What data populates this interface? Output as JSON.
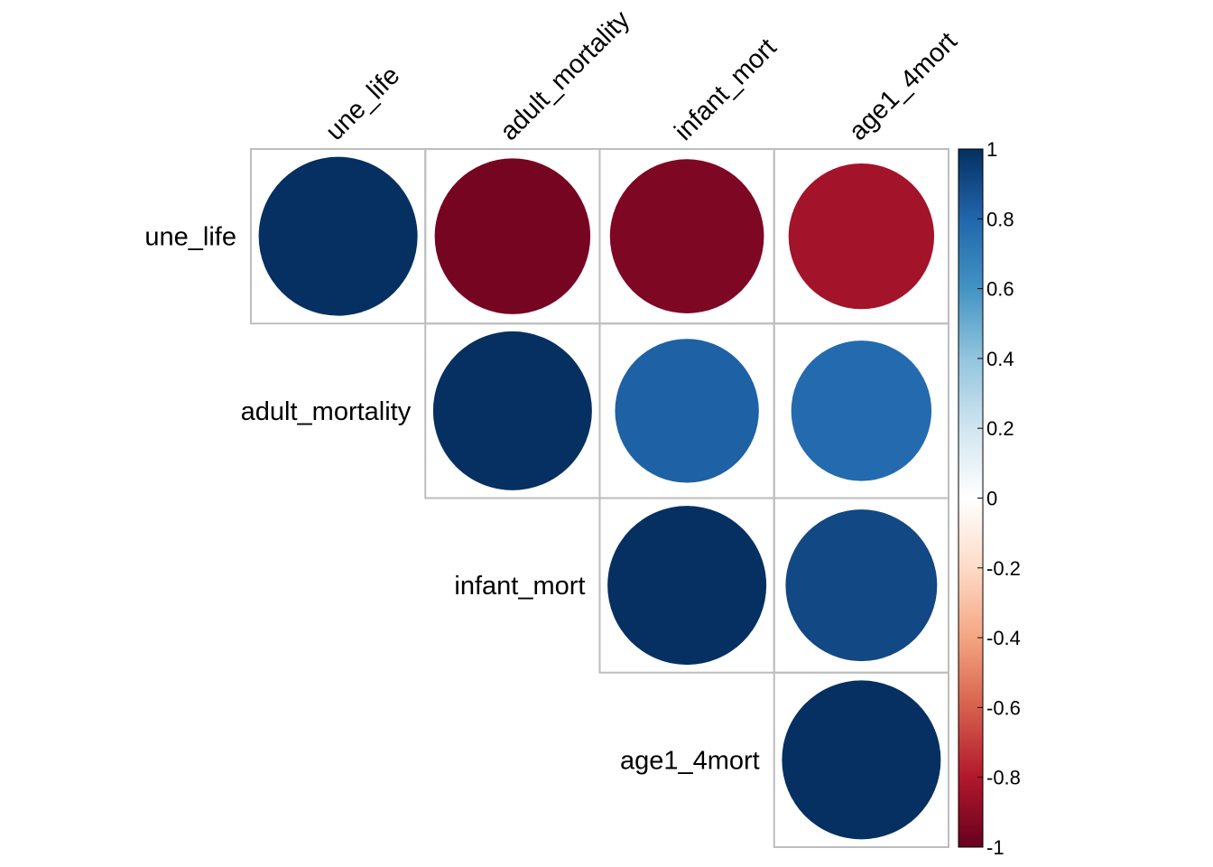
{
  "chart_data": {
    "type": "heatmap",
    "variables": [
      "une_life",
      "adult_mortality",
      "infant_mort",
      "age1_4mort"
    ],
    "layout": "upper-triangle",
    "cells": [
      {
        "row": "une_life",
        "col": "une_life",
        "value": 1.0
      },
      {
        "row": "une_life",
        "col": "adult_mortality",
        "value": -0.96
      },
      {
        "row": "une_life",
        "col": "infant_mort",
        "value": -0.94
      },
      {
        "row": "une_life",
        "col": "age1_4mort",
        "value": -0.84
      },
      {
        "row": "adult_mortality",
        "col": "adult_mortality",
        "value": 1.0
      },
      {
        "row": "adult_mortality",
        "col": "infant_mort",
        "value": 0.82
      },
      {
        "row": "adult_mortality",
        "col": "age1_4mort",
        "value": 0.78
      },
      {
        "row": "infant_mort",
        "col": "infant_mort",
        "value": 1.0
      },
      {
        "row": "infant_mort",
        "col": "age1_4mort",
        "value": 0.91
      },
      {
        "row": "age1_4mort",
        "col": "age1_4mort",
        "value": 1.0
      }
    ],
    "colorbar": {
      "range": [
        -1,
        1
      ],
      "ticks": [
        "1",
        "0.8",
        "0.6",
        "0.4",
        "0.2",
        "0",
        "-0.2",
        "-0.4",
        "-0.6",
        "-0.8",
        "-1"
      ],
      "palette": [
        "#67001f",
        "#b2182b",
        "#d6604d",
        "#f4a582",
        "#fddbc7",
        "#ffffff",
        "#d1e5f0",
        "#92c5de",
        "#4393c3",
        "#2166ac",
        "#053061"
      ]
    },
    "grid": true,
    "legend": "right"
  }
}
